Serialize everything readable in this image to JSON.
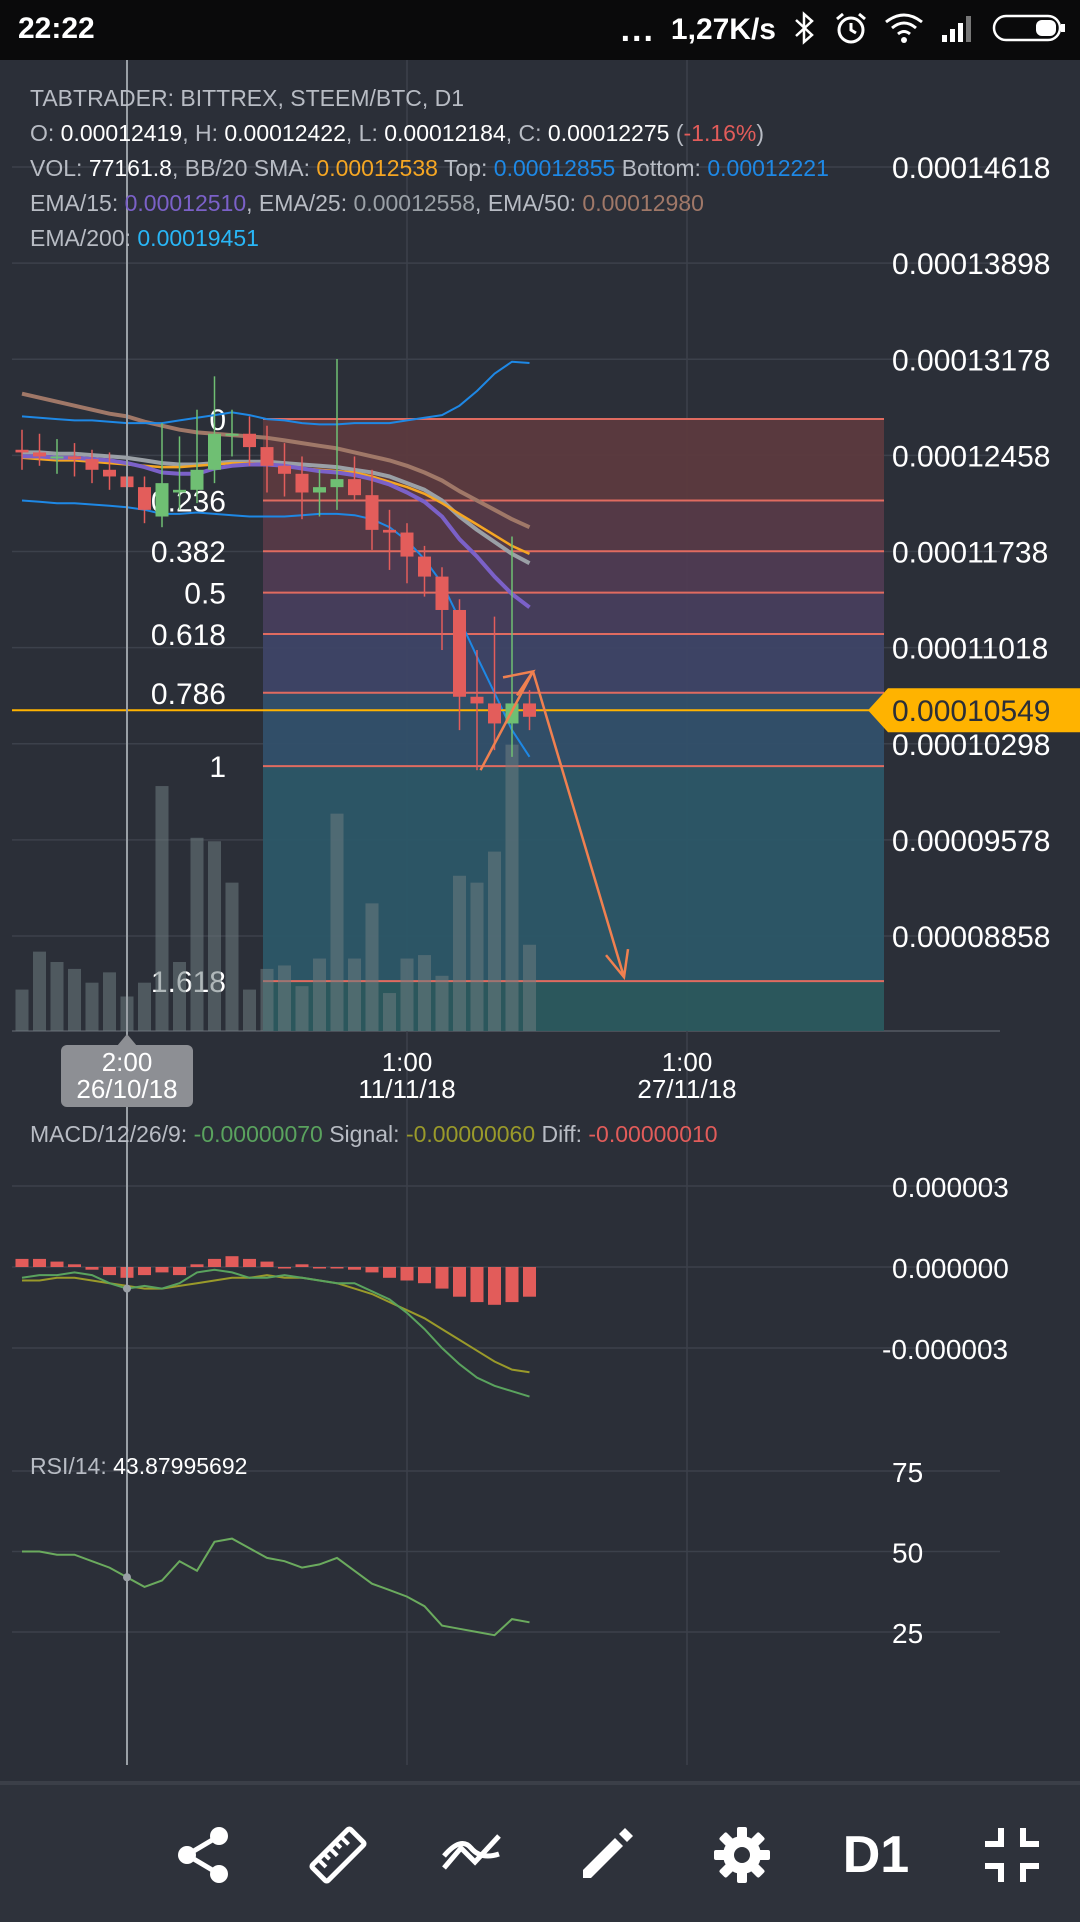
{
  "status_bar": {
    "time": "22:22",
    "dots": "...",
    "net_speed": "1,27K/s",
    "icons": [
      "bluetooth-icon",
      "alarm-icon",
      "wifi-icon",
      "signal-icon",
      "battery-icon"
    ]
  },
  "header": {
    "title": "TABTRADER: BITTREX, STEEM/BTC, D1",
    "ohlc": [
      {
        "label": "O: ",
        "value": "0.00012419",
        "sep": ", "
      },
      {
        "label": "H: ",
        "value": "0.00012422",
        "sep": ", "
      },
      {
        "label": "L: ",
        "value": "0.00012184",
        "sep": ", "
      },
      {
        "label": "C: ",
        "value": "0.00012275",
        "sep": " ("
      },
      {
        "label": "",
        "value": "-1.16%",
        "sep": ")"
      }
    ],
    "vol_line": [
      {
        "label": "VOL: ",
        "value": "77161.8",
        "sep": ", "
      },
      {
        "label": "BB/20 SMA: ",
        "value": "0.00012538",
        "sep": " "
      },
      {
        "label": "Top: ",
        "value": "0.00012855",
        "sep": " "
      },
      {
        "label": "Bottom: ",
        "value": "0.00012221",
        "sep": ""
      }
    ],
    "ema_line": [
      {
        "label": "EMA/15: ",
        "value": "0.00012510",
        "sep": ", "
      },
      {
        "label": "EMA/25: ",
        "value": "0.00012558",
        "sep": ", "
      },
      {
        "label": "EMA/50: ",
        "value": "0.00012980",
        "sep": ""
      }
    ],
    "ema200_line": [
      {
        "label": "EMA/200: ",
        "value": "0.00019451",
        "sep": ""
      }
    ]
  },
  "colors": {
    "background": "#2b2f38",
    "grid": "#3c414b",
    "up": "#6fbf73",
    "down": "#e35d5b",
    "bb": "#1e88e5",
    "sma": "#f5a623",
    "ema15": "#7b61c8",
    "ema25": "#9aa0a6",
    "ema50": "#a07868",
    "ema200": "#29b6f6",
    "fib_line": "#e06b60",
    "current_price": "#ffb300",
    "annotation": "#f08050",
    "macd": "#5aa35e",
    "signal": "#9a9a2a",
    "rsi": "#6bab5e",
    "neg": "#e25c5a"
  },
  "price_axis": {
    "labels": [
      "0.00014618",
      "0.00013898",
      "0.00013178",
      "0.00012458",
      "0.00011738",
      "0.00011018",
      "0.00010298",
      "0.00009578",
      "0.00008858"
    ],
    "current_price": "0.00010549"
  },
  "fibonacci": {
    "levels": [
      "0",
      "0.236",
      "0.382",
      "0.5",
      "0.618",
      "0.786",
      "1",
      "1.618"
    ],
    "prices": [
      0.0001273,
      0.0001212,
      0.0001174,
      0.0001143,
      0.0001112,
      0.0001068,
      0.0001013,
      8.52e-05
    ]
  },
  "time_axis": {
    "crosshair_time": "2:00",
    "crosshair_date": "26/10/18",
    "ticks": [
      {
        "time": "1:00",
        "date": "11/11/18"
      },
      {
        "time": "1:00",
        "date": "27/11/18"
      }
    ]
  },
  "macd": {
    "label": "MACD/12/26/9: ",
    "macd_value": "-0.00000070",
    "signal_label": " Signal: ",
    "signal_value": "-0.00000060",
    "diff_label": " Diff: ",
    "diff_value": "-0.00000010",
    "axis": [
      "0.000003",
      "0.000000",
      "-0.000003"
    ]
  },
  "rsi": {
    "label": "RSI/14: ",
    "value": "43.87995692",
    "axis": [
      "75",
      "50",
      "25"
    ]
  },
  "chart_data": {
    "type": "candlestick",
    "x": [
      "2018-10-20",
      "2018-10-21",
      "2018-10-22",
      "2018-10-23",
      "2018-10-24",
      "2018-10-25",
      "2018-10-26",
      "2018-10-27",
      "2018-10-28",
      "2018-10-29",
      "2018-10-30",
      "2018-10-31",
      "2018-11-01",
      "2018-11-02",
      "2018-11-03",
      "2018-11-04",
      "2018-11-05",
      "2018-11-06",
      "2018-11-07",
      "2018-11-08",
      "2018-11-09",
      "2018-11-10",
      "2018-11-11",
      "2018-11-12",
      "2018-11-13",
      "2018-11-14",
      "2018-11-15",
      "2018-11-16",
      "2018-11-17",
      "2018-11-18"
    ],
    "open": [
      0.000125,
      0.0001248,
      0.0001245,
      0.0001245,
      0.0001243,
      0.0001235,
      0.000123,
      0.0001222,
      0.00012,
      0.0001218,
      0.000122,
      0.0001235,
      0.0001262,
      0.0001262,
      0.0001252,
      0.0001238,
      0.0001232,
      0.0001218,
      0.0001222,
      0.0001228,
      0.0001216,
      0.000119,
      0.0001188,
      0.000117,
      0.0001155,
      0.000113,
      0.0001065,
      0.000106,
      0.0001045,
      0.000106
    ],
    "high": [
      0.0001265,
      0.0001262,
      0.0001258,
      0.0001255,
      0.000125,
      0.0001248,
      0.0001238,
      0.000123,
      0.000127,
      0.000126,
      0.000128,
      0.0001305,
      0.000128,
      0.0001275,
      0.0001268,
      0.0001255,
      0.0001245,
      0.0001235,
      0.0001318,
      0.0001245,
      0.0001235,
      0.0001205,
      0.0001195,
      0.0001178,
      0.0001162,
      0.0001138,
      0.00011,
      0.0001125,
      0.0001185,
      0.000107
    ],
    "low": [
      0.0001235,
      0.0001238,
      0.0001232,
      0.000123,
      0.0001225,
      0.000122,
      0.0001215,
      0.0001195,
      0.0001192,
      0.0001205,
      0.000121,
      0.0001225,
      0.0001245,
      0.0001238,
      0.0001218,
      0.0001215,
      0.0001198,
      0.00012,
      0.0001205,
      0.0001212,
      0.0001175,
      0.000116,
      0.000115,
      0.000114,
      0.00011,
      0.000104,
      0.000101,
      0.0001025,
      0.000102,
      0.000104
    ],
    "close": [
      0.0001248,
      0.0001245,
      0.0001245,
      0.0001243,
      0.0001235,
      0.000123,
      0.0001222,
      0.0001205,
      0.0001225,
      0.000122,
      0.0001235,
      0.0001262,
      0.0001262,
      0.0001252,
      0.0001238,
      0.0001232,
      0.0001218,
      0.0001222,
      0.0001228,
      0.0001216,
      0.000119,
      0.0001188,
      0.000117,
      0.0001155,
      0.000113,
      0.0001065,
      0.000106,
      0.0001045,
      0.000106,
      0.000105
    ],
    "volume": [
      12,
      23,
      20,
      18,
      14,
      17,
      10,
      14,
      71,
      20,
      56,
      55,
      43,
      12,
      18,
      19,
      13,
      21,
      63,
      21,
      37,
      11,
      21,
      22,
      16,
      45,
      43,
      52,
      83,
      25
    ],
    "bb_upper": [
      0.0001275,
      0.0001274,
      0.0001273,
      0.0001272,
      0.0001272,
      0.0001271,
      0.000127,
      0.000127,
      0.000127,
      0.0001272,
      0.0001274,
      0.0001276,
      0.0001278,
      0.0001276,
      0.0001273,
      0.0001272,
      0.000127,
      0.0001269,
      0.0001269,
      0.000127,
      0.000127,
      0.000127,
      0.0001272,
      0.0001274,
      0.0001276,
      0.0001283,
      0.0001294,
      0.0001307,
      0.0001316,
      0.0001315
    ],
    "bb_lower": [
      0.0001212,
      0.0001211,
      0.000121,
      0.000121,
      0.0001209,
      0.0001208,
      0.0001207,
      0.0001205,
      0.0001202,
      0.0001202,
      0.0001203,
      0.0001202,
      0.0001201,
      0.00012,
      0.00012,
      0.00012,
      0.0001201,
      0.0001202,
      0.0001202,
      0.0001201,
      0.0001198,
      0.0001192,
      0.0001182,
      0.0001168,
      0.000115,
      0.0001123,
      0.0001095,
      0.0001068,
      0.000104,
      0.000102
    ],
    "ema15": [
      0.0001245,
      0.0001245,
      0.0001244,
      0.0001244,
      0.0001243,
      0.0001242,
      0.000124,
      0.0001237,
      0.0001233,
      0.0001232,
      0.0001232,
      0.0001236,
      0.0001238,
      0.0001239,
      0.0001239,
      0.0001238,
      0.0001236,
      0.0001234,
      0.0001233,
      0.0001231,
      0.0001228,
      0.0001224,
      0.0001218,
      0.0001211,
      0.00012,
      0.0001183,
      0.000117,
      0.0001155,
      0.0001142,
      0.0001132
    ],
    "ema25": [
      0.0001248,
      0.0001248,
      0.0001247,
      0.0001247,
      0.0001246,
      0.0001245,
      0.0001244,
      0.0001242,
      0.000124,
      0.0001239,
      0.0001239,
      0.000124,
      0.0001241,
      0.0001241,
      0.0001241,
      0.000124,
      0.0001239,
      0.0001238,
      0.0001237,
      0.0001235,
      0.0001233,
      0.000123,
      0.0001225,
      0.000122,
      0.0001212,
      0.00012,
      0.000119,
      0.0001181,
      0.0001172,
      0.0001165
    ],
    "ema50": [
      0.0001292,
      0.0001289,
      0.0001286,
      0.0001283,
      0.000128,
      0.0001277,
      0.0001275,
      0.0001271,
      0.0001268,
      0.0001265,
      0.0001263,
      0.0001262,
      0.0001261,
      0.000126,
      0.0001259,
      0.0001257,
      0.0001255,
      0.0001253,
      0.0001251,
      0.0001248,
      0.0001245,
      0.0001242,
      0.0001238,
      0.0001233,
      0.0001227,
      0.0001219,
      0.0001212,
      0.0001205,
      0.0001198,
      0.0001192
    ],
    "sma20": [
      0.0001244,
      0.0001243,
      0.0001242,
      0.0001242,
      0.0001241,
      0.000124,
      0.0001239,
      0.0001238,
      0.0001237,
      0.0001237,
      0.0001238,
      0.0001239,
      0.000124,
      0.000124,
      0.0001239,
      0.0001238,
      0.0001236,
      0.0001235,
      0.0001234,
      0.0001233,
      0.000123,
      0.0001226,
      0.0001222,
      0.0001217,
      0.000121,
      0.0001202,
      0.0001194,
      0.0001186,
      0.0001178,
      0.0001172
    ],
    "macd_hist": [
      0.3,
      0.3,
      0.2,
      0.1,
      -0.1,
      -0.3,
      -0.4,
      -0.3,
      -0.2,
      -0.3,
      0.1,
      0.3,
      0.4,
      0.3,
      0.2,
      0.0,
      0.1,
      0.0,
      0.0,
      -0.1,
      -0.2,
      -0.4,
      -0.5,
      -0.6,
      -0.8,
      -1.1,
      -1.3,
      -1.4,
      -1.3,
      -1.1
    ],
    "macd_line": [
      -0.4,
      -0.3,
      -0.3,
      -0.2,
      -0.3,
      -0.6,
      -0.8,
      -0.7,
      -0.8,
      -0.6,
      -0.2,
      -0.1,
      -0.2,
      -0.4,
      -0.4,
      -0.3,
      -0.4,
      -0.5,
      -0.6,
      -0.6,
      -0.9,
      -1.2,
      -1.7,
      -2.3,
      -3.0,
      -3.6,
      -4.1,
      -4.4,
      -4.6,
      -4.8
    ],
    "signal_line": [
      -0.5,
      -0.5,
      -0.4,
      -0.4,
      -0.5,
      -0.6,
      -0.7,
      -0.8,
      -0.8,
      -0.7,
      -0.6,
      -0.5,
      -0.4,
      -0.4,
      -0.3,
      -0.4,
      -0.4,
      -0.5,
      -0.6,
      -0.8,
      -1.0,
      -1.3,
      -1.6,
      -1.9,
      -2.3,
      -2.7,
      -3.1,
      -3.5,
      -3.8,
      -3.9
    ],
    "rsi": [
      50,
      50,
      49,
      49,
      47,
      45,
      42,
      39,
      41,
      47,
      44,
      53,
      54,
      51,
      48,
      47,
      45,
      46,
      48,
      44,
      40,
      38,
      36,
      33,
      27,
      26,
      25,
      24,
      29,
      28
    ]
  },
  "toolbar": {
    "timeframe": "D1"
  }
}
